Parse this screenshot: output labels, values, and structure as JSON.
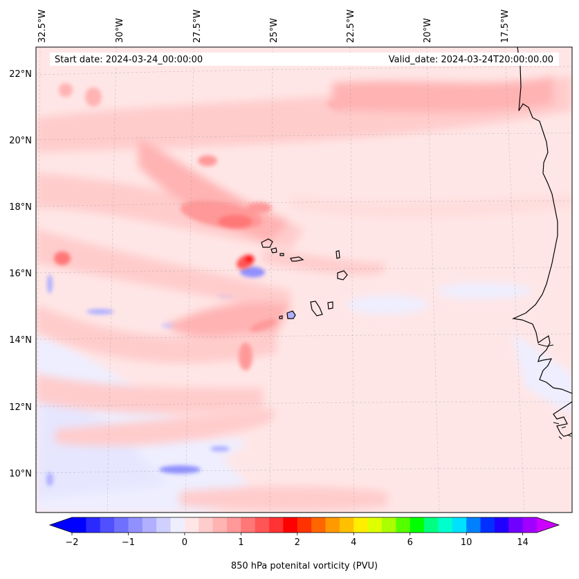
{
  "header": {
    "start_date": "Start date: 2024-03-24_00:00:00",
    "valid_date": "Valid_date: 2024-03-24T20:00:00.00"
  },
  "axes": {
    "longitude_labels": [
      "32.5°W",
      "30°W",
      "27.5°W",
      "25°W",
      "22.5°W",
      "20°W",
      "17.5°W"
    ],
    "latitude_labels": [
      "22°N",
      "20°N",
      "18°N",
      "16°N",
      "14°N",
      "12°N",
      "10°N"
    ]
  },
  "colorbar": {
    "label": "850 hPa potenital vorticity (PVU)",
    "tick_labels": [
      "−2",
      "−1",
      "0",
      "1",
      "2",
      "4",
      "6",
      "10",
      "14"
    ],
    "colors": [
      "#0000ff",
      "#2a2aff",
      "#5050ff",
      "#7070ff",
      "#9090ff",
      "#b0b0ff",
      "#d0d0ff",
      "#eeeeff",
      "#ffe6e6",
      "#ffcccc",
      "#ffb3b3",
      "#ff9999",
      "#ff7777",
      "#ff5555",
      "#ff3333",
      "#ff0000",
      "#ff3300",
      "#ff6600",
      "#ff9900",
      "#ffc000",
      "#ffee00",
      "#ddff00",
      "#aaff00",
      "#55ff00",
      "#00ff00",
      "#00ff80",
      "#00ffcc",
      "#00e0ff",
      "#0080ff",
      "#0030ff",
      "#2000ff",
      "#7000ff",
      "#a000ff"
    ],
    "under_color": "#0000ff",
    "over_color": "#cc00ff"
  },
  "map": {
    "region": "Cape Verde and West African coast",
    "background_color": "#ffe6e6"
  }
}
